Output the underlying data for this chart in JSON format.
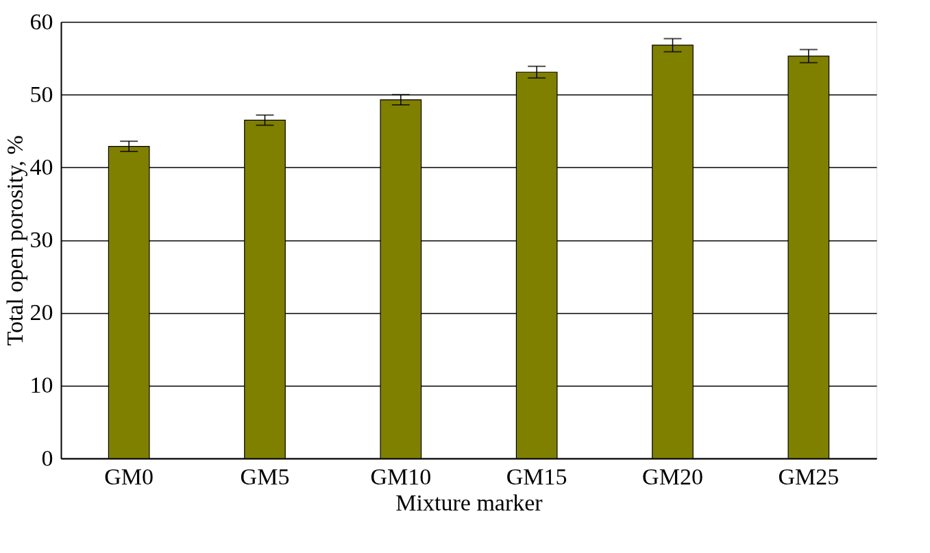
{
  "chart_data": {
    "type": "bar",
    "xlabel": "Mixture marker",
    "ylabel": "Total open porosity, %",
    "categories": [
      "GM0",
      "GM5",
      "GM10",
      "GM15",
      "GM20",
      "GM25"
    ],
    "values": [
      42.9,
      46.5,
      49.3,
      53.1,
      56.8,
      55.3
    ],
    "errors": [
      0.7,
      0.7,
      0.7,
      0.8,
      0.9,
      0.9
    ],
    "color": "#808000",
    "ylim": [
      0,
      60
    ],
    "yticks": [
      0,
      10,
      20,
      30,
      40,
      50,
      60
    ],
    "grid": "y"
  }
}
